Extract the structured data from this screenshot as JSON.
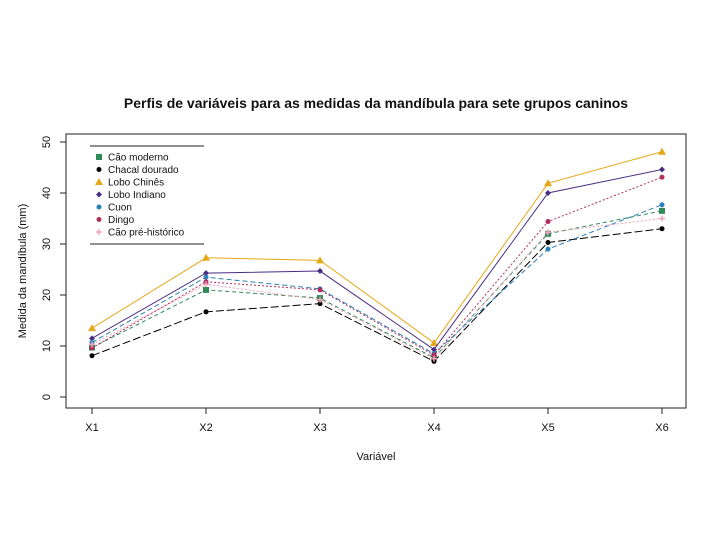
{
  "chart_data": {
    "type": "line",
    "title": "Perfis de variáveis para as medidas da mandíbula para sete grupos caninos",
    "xlabel": "Variável",
    "ylabel": "Medida da mandíbula (mm)",
    "categories": [
      "X1",
      "X2",
      "X3",
      "X4",
      "X5",
      "X6"
    ],
    "yticks": [
      "0",
      "10",
      "20",
      "30",
      "40",
      "50"
    ],
    "ylim": [
      0,
      50
    ],
    "legend_position": "top-left",
    "grid": false,
    "series": [
      {
        "name": "Cão moderno",
        "color": "#2e8b57",
        "marker": "square",
        "dash": "4,3",
        "values": [
          9.7,
          21.0,
          19.4,
          7.7,
          32.0,
          36.5
        ]
      },
      {
        "name": "Chacal dourado",
        "color": "#000000",
        "marker": "circle",
        "dash": "8,3",
        "values": [
          8.1,
          16.7,
          18.3,
          7.0,
          30.3,
          33.0
        ]
      },
      {
        "name": "Lobo Chinês",
        "color": "#e6a817",
        "marker": "triangle",
        "dash": "",
        "values": [
          13.5,
          27.3,
          26.8,
          10.6,
          41.9,
          48.1
        ]
      },
      {
        "name": "Lobo Indiano",
        "color": "#4b2e83",
        "marker": "diamond",
        "dash": "",
        "values": [
          11.5,
          24.3,
          24.7,
          9.3,
          40.0,
          44.6
        ]
      },
      {
        "name": "Cuon",
        "color": "#2a7fb8",
        "marker": "circle",
        "dash": "5,3",
        "values": [
          10.7,
          23.5,
          21.2,
          8.5,
          29.0,
          37.7
        ]
      },
      {
        "name": "Dingo",
        "color": "#b03060",
        "marker": "circle",
        "dash": "2,2",
        "values": [
          9.6,
          22.6,
          21.0,
          8.2,
          34.4,
          43.1
        ]
      },
      {
        "name": "Cão pré-histórico",
        "color": "#f4a0b8",
        "marker": "plus",
        "dash": "2,2",
        "values": [
          10.3,
          22.1,
          19.1,
          7.5,
          32.3,
          35.0
        ]
      }
    ]
  }
}
